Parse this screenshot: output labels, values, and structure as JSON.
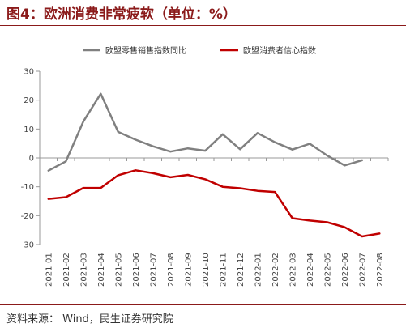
{
  "header": {
    "title": "图4：欧洲消费非常疲软（单位：%）"
  },
  "footer": {
    "source": "资料来源：  Wind，民生证券研究院"
  },
  "colors": {
    "retail": "#808080",
    "confidence": "#c00000",
    "accent": "#8b1a1a"
  },
  "chart_data": {
    "type": "line",
    "title": "",
    "xlabel": "",
    "ylabel": "",
    "ylim": [
      -30,
      30
    ],
    "yticks": [
      30,
      20,
      10,
      0,
      -10,
      -20,
      -30
    ],
    "grid": false,
    "legend": "top",
    "categories": [
      "2021-01",
      "2021-02",
      "2021-03",
      "2021-04",
      "2021-05",
      "2021-06",
      "2021-07",
      "2021-08",
      "2021-09",
      "2021-10",
      "2021-11",
      "2021-12",
      "2022-01",
      "2022-02",
      "2022-03",
      "2022-04",
      "2022-05",
      "2022-06",
      "2022-07",
      "2022-08"
    ],
    "series": [
      {
        "name": "欧盟零售销售指数同比",
        "values": [
          -4.4,
          -1.2,
          12.6,
          22.2,
          9.0,
          6.3,
          4.0,
          2.2,
          3.3,
          2.5,
          8.2,
          3.0,
          8.6,
          5.4,
          2.9,
          4.9,
          0.8,
          -2.6,
          -0.8,
          null
        ]
      },
      {
        "name": "欧盟消费者信心指数",
        "values": [
          -14.2,
          -13.6,
          -10.4,
          -10.4,
          -6.0,
          -4.3,
          -5.3,
          -6.7,
          -5.9,
          -7.4,
          -10.0,
          -10.5,
          -11.4,
          -11.8,
          -20.9,
          -21.7,
          -22.3,
          -24.0,
          -27.2,
          -26.2
        ]
      }
    ]
  }
}
